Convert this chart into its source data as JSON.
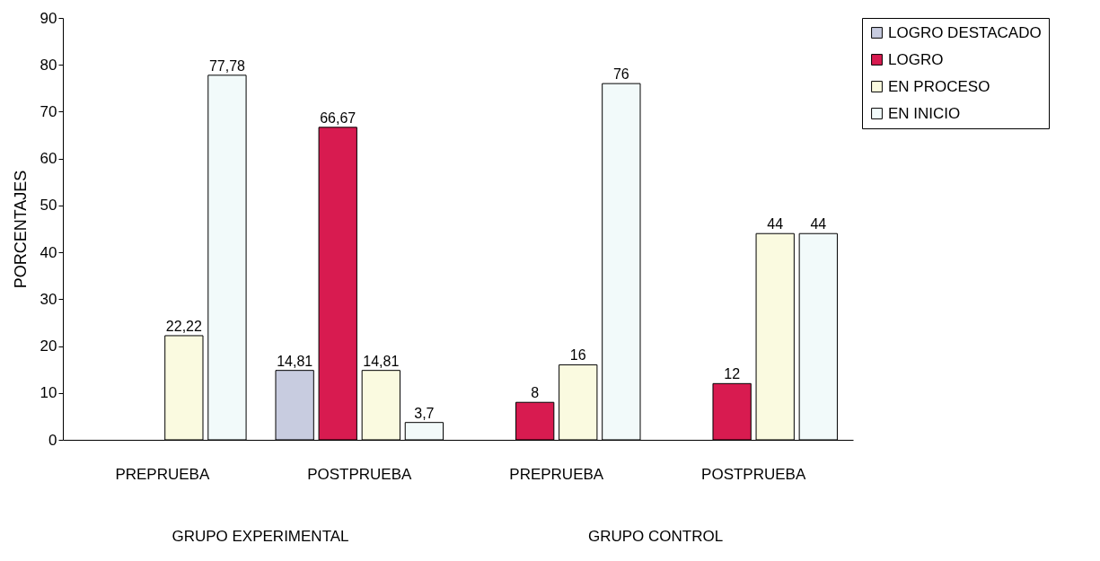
{
  "chart_data": {
    "type": "bar",
    "ylabel": "PORCENTAJES",
    "categories": [
      "PREPRUEBA",
      "POSTPRUEBA",
      "PREPRUEBA",
      "POSTPRUEBA"
    ],
    "annotations": [
      "GRUPO EXPERIMENTAL",
      "GRUPO CONTROL"
    ],
    "series": [
      {
        "name": "LOGRO DESTACADO",
        "color": "#c8cce0",
        "values": [
          null,
          14.81,
          null,
          null
        ],
        "value_labels": [
          null,
          "14,81",
          null,
          null
        ]
      },
      {
        "name": "LOGRO",
        "color": "#d81b50",
        "values": [
          null,
          66.67,
          8,
          12
        ],
        "value_labels": [
          null,
          "66,67",
          "8",
          "12"
        ]
      },
      {
        "name": "EN PROCESO",
        "color": "#fafae0",
        "values": [
          22.22,
          14.81,
          16,
          44
        ],
        "value_labels": [
          "22,22",
          "14,81",
          "16",
          "44"
        ]
      },
      {
        "name": "EN INICIO",
        "color": "#f2fafa",
        "values": [
          77.78,
          3.7,
          76,
          44
        ],
        "value_labels": [
          "77,78",
          "3,7",
          "76",
          "44"
        ]
      }
    ],
    "ylim": [
      0,
      90
    ],
    "yticks": [
      0,
      10,
      20,
      30,
      40,
      50,
      60,
      70,
      80,
      90
    ],
    "grid": false,
    "legend": "top right"
  }
}
